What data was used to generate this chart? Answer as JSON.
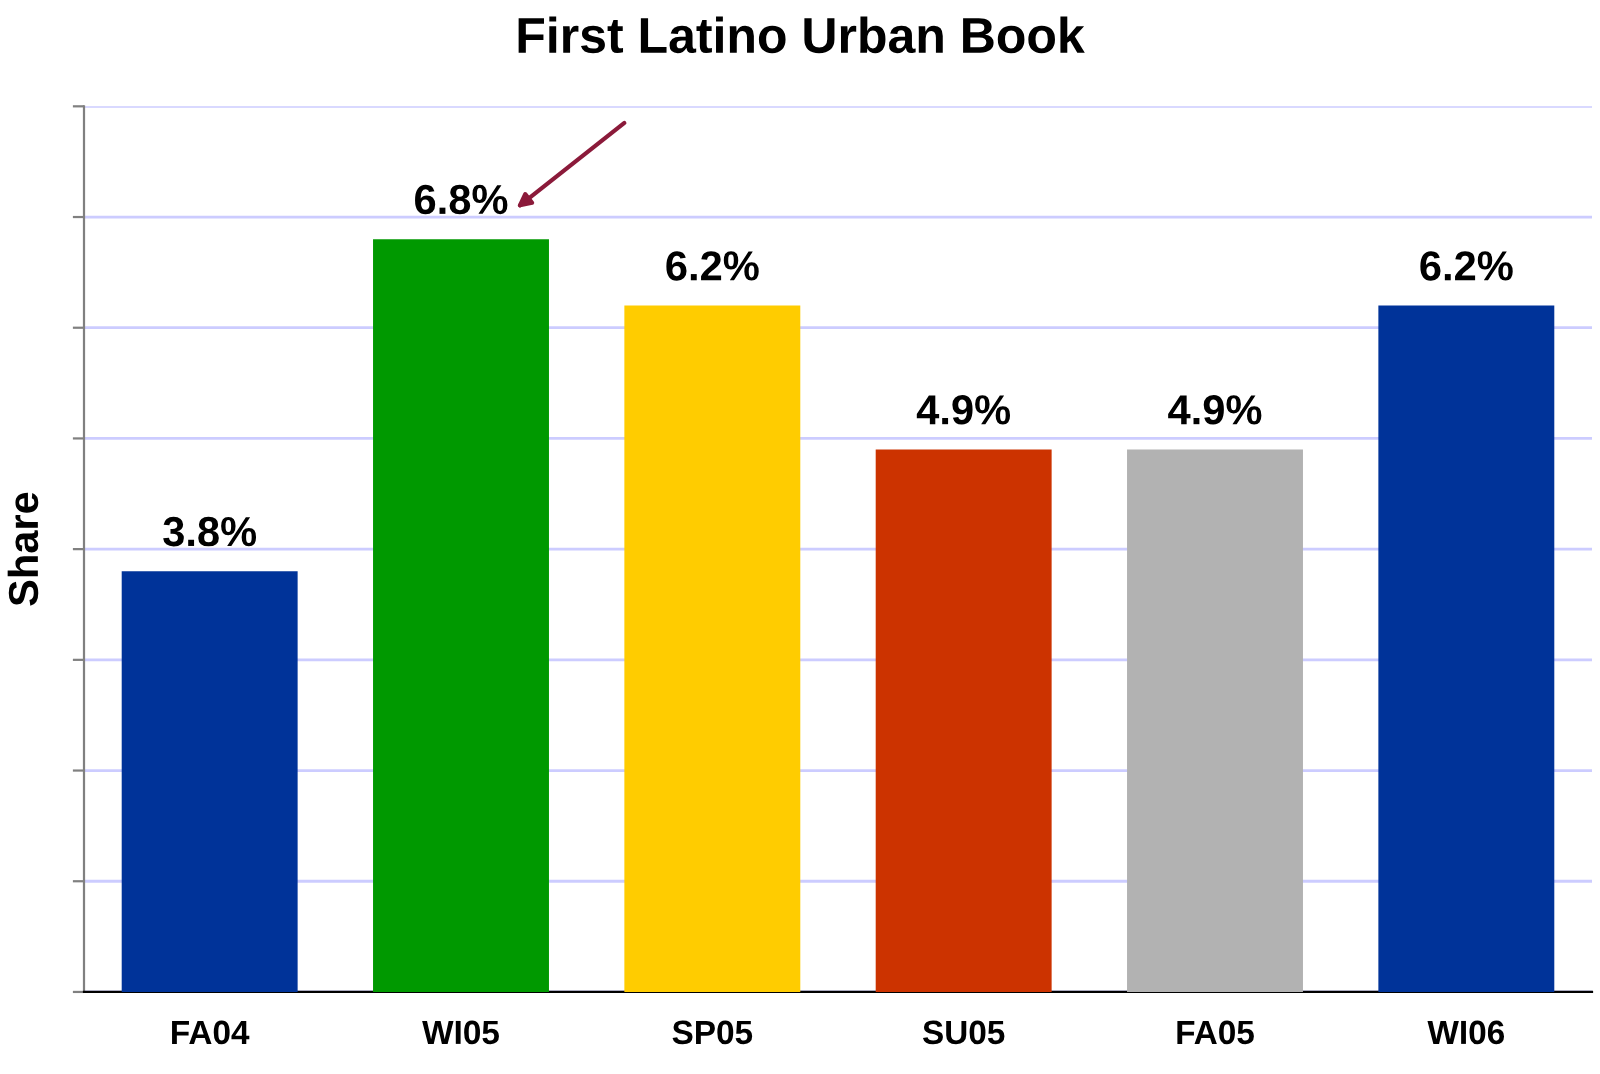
{
  "chart_data": {
    "type": "bar",
    "ylabel": "Share",
    "categories": [
      "FA04",
      "WI05",
      "SP05",
      "SU05",
      "FA05",
      "WI06"
    ],
    "values": [
      3.8,
      6.8,
      6.2,
      4.9,
      4.9,
      6.2
    ],
    "colors": [
      "#003399",
      "#009900",
      "#ffcc00",
      "#cc3300",
      "#b2b2b2",
      "#003399"
    ],
    "value_labels": [
      "3.8%",
      "6.8%",
      "6.2%",
      "4.9%",
      "4.9%",
      "6.2%"
    ],
    "ylim": [
      0,
      8
    ],
    "yticks": [
      {
        "value": 0,
        "label": null
      },
      {
        "value": 1,
        "label": null
      },
      {
        "value": 2,
        "label": null
      },
      {
        "value": 3,
        "label": null
      },
      {
        "value": 4,
        "label": null
      },
      {
        "value": 5,
        "label": null
      },
      {
        "value": 6,
        "label": null
      },
      {
        "value": 7,
        "label": null
      },
      {
        "value": 8,
        "label": null
      }
    ],
    "tick_labels": "x",
    "grid": "y",
    "legend": false,
    "annotations": [
      "First Latino Urban Book"
    ]
  }
}
